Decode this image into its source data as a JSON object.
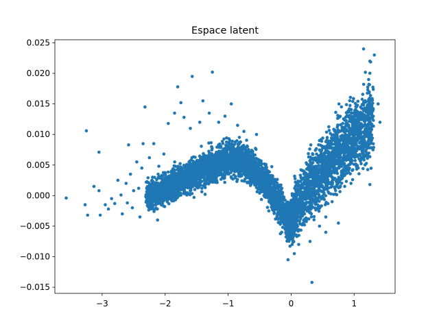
{
  "chart_data": {
    "type": "scatter",
    "title": "Espace latent",
    "xlabel": "",
    "ylabel": "",
    "xlim": [
      -3.75,
      1.65
    ],
    "ylim": [
      -0.016,
      0.0255
    ],
    "x_ticks": [
      -3,
      -2,
      -1,
      0,
      1
    ],
    "x_tick_labels": [
      "−3",
      "−2",
      "−1",
      "0",
      "1"
    ],
    "y_ticks": [
      -0.015,
      -0.01,
      -0.005,
      0.0,
      0.005,
      0.01,
      0.015,
      0.02,
      0.025
    ],
    "y_tick_labels": [
      "−0.015",
      "−0.010",
      "−0.005",
      "0.000",
      "0.005",
      "0.010",
      "0.015",
      "0.020",
      "0.025"
    ],
    "grid": false,
    "marker_color": "#1f77b4",
    "series": [
      {
        "points": [
          [
            -3.57,
            -0.0004
          ],
          [
            -3.25,
            0.0106
          ],
          [
            -3.27,
            -0.0015
          ],
          [
            -3.23,
            -0.0032
          ],
          [
            -3.13,
            0.0015
          ],
          [
            -3.05,
            0.0071
          ],
          [
            -3.05,
            0.0008
          ],
          [
            -3.03,
            -0.0032
          ],
          [
            -2.95,
            -0.0015
          ],
          [
            -2.9,
            -0.0022
          ],
          [
            -2.85,
            -0.0005
          ],
          [
            -2.8,
            -0.0013
          ],
          [
            -2.75,
            0.0025
          ],
          [
            -2.7,
            0.0001
          ],
          [
            -2.68,
            -0.003
          ],
          [
            -2.62,
            0.002
          ],
          [
            -2.6,
            -0.0012
          ],
          [
            -2.58,
            0.0083
          ],
          [
            -2.55,
            0.0035
          ],
          [
            -2.52,
            -0.002
          ],
          [
            -2.5,
            0.0008
          ],
          [
            -2.45,
            0.0055
          ],
          [
            -2.42,
            0.0012
          ],
          [
            -2.4,
            -0.0035
          ],
          [
            -2.37,
            0.0045
          ],
          [
            -2.35,
            0.0085
          ],
          [
            -2.32,
            0.0145
          ],
          [
            -2.3,
            0.0022
          ],
          [
            -2.28,
            -0.001
          ],
          [
            -2.25,
            0.0062
          ],
          [
            -2.2,
            0.003
          ],
          [
            -2.18,
            0.0085
          ],
          [
            -2.15,
            0.0
          ],
          [
            -2.12,
            -0.004
          ],
          [
            -2.1,
            0.0048
          ],
          [
            -2.05,
            0.0018
          ],
          [
            -2.02,
            0.0068
          ],
          [
            -1.98,
            0.001
          ],
          [
            -1.95,
            0.0118
          ],
          [
            -1.9,
            0.004
          ],
          [
            -1.85,
            0.0135
          ],
          [
            -1.8,
            0.0178
          ],
          [
            -1.75,
            0.0152
          ],
          [
            -1.7,
            0.0128
          ],
          [
            -1.6,
            0.011
          ],
          [
            -1.57,
            0.0195
          ],
          [
            -1.45,
            0.012
          ],
          [
            -1.4,
            0.0155
          ],
          [
            -1.3,
            0.0135
          ],
          [
            -1.25,
            0.0202
          ],
          [
            -1.15,
            0.012
          ],
          [
            -1.05,
            0.013
          ],
          [
            -0.95,
            0.015
          ],
          [
            -0.85,
            0.0115
          ],
          [
            -0.75,
            0.0105
          ],
          [
            -0.55,
            0.01
          ],
          [
            -0.4,
            0.005
          ],
          [
            -0.15,
            -0.006
          ],
          [
            -0.05,
            -0.0105
          ],
          [
            0.05,
            -0.0095
          ],
          [
            0.12,
            -0.008
          ],
          [
            0.3,
            -0.0075
          ],
          [
            0.33,
            -0.0142
          ],
          [
            0.45,
            -0.005
          ],
          [
            0.55,
            -0.0035
          ],
          [
            0.65,
            -0.001
          ],
          [
            0.75,
            -0.0045
          ],
          [
            0.8,
            0.004
          ],
          [
            0.95,
            0.002
          ],
          [
            1.1,
            0.008
          ],
          [
            1.15,
            0.024
          ],
          [
            1.25,
            0.022
          ],
          [
            1.32,
            0.023
          ],
          [
            1.38,
            0.015
          ],
          [
            1.41,
            0.012
          ],
          [
            1.25,
            0.0018
          ],
          [
            1.3,
            0.0075
          ],
          [
            0.85,
            0.0015
          ],
          [
            0.55,
            -0.006
          ],
          [
            -0.3,
            0.0
          ]
        ]
      }
    ],
    "density_path": [
      [
        -2.3,
        0.0,
        0.0018,
        0.003
      ],
      [
        -2.2,
        0.0004,
        0.002,
        0.003
      ],
      [
        -2.1,
        0.0006,
        0.002,
        0.003
      ],
      [
        -2.0,
        0.001,
        0.002,
        0.0032
      ],
      [
        -1.9,
        0.0016,
        0.002,
        0.0034
      ],
      [
        -1.8,
        0.0022,
        0.002,
        0.0034
      ],
      [
        -1.7,
        0.0028,
        0.002,
        0.0035
      ],
      [
        -1.6,
        0.0033,
        0.0021,
        0.0035
      ],
      [
        -1.5,
        0.0037,
        0.0021,
        0.0036
      ],
      [
        -1.4,
        0.0042,
        0.0022,
        0.0036
      ],
      [
        -1.3,
        0.0047,
        0.0022,
        0.0037
      ],
      [
        -1.2,
        0.0052,
        0.0023,
        0.0037
      ],
      [
        -1.1,
        0.0057,
        0.0023,
        0.0038
      ],
      [
        -1.0,
        0.006,
        0.0023,
        0.0038
      ],
      [
        -0.9,
        0.0061,
        0.0023,
        0.0038
      ],
      [
        -0.8,
        0.0058,
        0.0023,
        0.0038
      ],
      [
        -0.7,
        0.0052,
        0.0023,
        0.0038
      ],
      [
        -0.6,
        0.0043,
        0.0023,
        0.0037
      ],
      [
        -0.5,
        0.0032,
        0.0023,
        0.0036
      ],
      [
        -0.4,
        0.002,
        0.0023,
        0.0036
      ],
      [
        -0.3,
        0.0006,
        0.0024,
        0.0036
      ],
      [
        -0.2,
        -0.0012,
        0.0025,
        0.0036
      ],
      [
        -0.1,
        -0.0032,
        0.0025,
        0.0036
      ],
      [
        -0.05,
        -0.0045,
        0.0025,
        0.0034
      ],
      [
        0.0,
        -0.004,
        0.0028,
        0.004
      ],
      [
        0.05,
        -0.003,
        0.0032,
        0.0045
      ],
      [
        0.1,
        -0.0018,
        0.0035,
        0.0048
      ],
      [
        0.2,
        0.0,
        0.0038,
        0.0055
      ],
      [
        0.3,
        0.0015,
        0.004,
        0.0065
      ],
      [
        0.4,
        0.0028,
        0.0042,
        0.0075
      ],
      [
        0.5,
        0.004,
        0.0043,
        0.0085
      ],
      [
        0.6,
        0.0053,
        0.0044,
        0.0095
      ],
      [
        0.7,
        0.0065,
        0.0045,
        0.0105
      ],
      [
        0.8,
        0.0077,
        0.0046,
        0.011
      ],
      [
        0.9,
        0.0088,
        0.0047,
        0.011
      ],
      [
        1.0,
        0.0097,
        0.0048,
        0.011
      ],
      [
        1.1,
        0.0107,
        0.005,
        0.011
      ],
      [
        1.2,
        0.0118,
        0.0052,
        0.011
      ],
      [
        1.3,
        0.0128,
        0.0055,
        0.011
      ]
    ]
  }
}
